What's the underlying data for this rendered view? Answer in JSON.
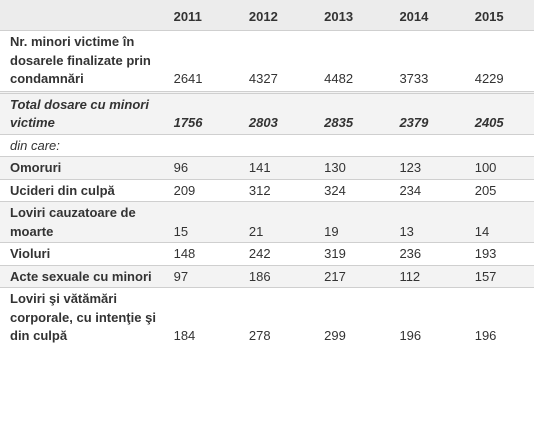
{
  "table": {
    "header": {
      "corner": "",
      "years": [
        "2011",
        "2012",
        "2013",
        "2014",
        "2015"
      ]
    },
    "rows": [
      {
        "label": "Nr. minori victime în dosarele finalizate prin condamnări",
        "values": [
          "2641",
          "4327",
          "4482",
          "3733",
          "4229"
        ]
      },
      {
        "label": "Total dosare cu minori victime",
        "values": [
          "1756",
          "2803",
          "2835",
          "2379",
          "2405"
        ]
      },
      {
        "label": "din care:"
      },
      {
        "label": "Omoruri",
        "values": [
          "96",
          "141",
          "130",
          "123",
          "100"
        ]
      },
      {
        "label": "Ucideri din culpă",
        "values": [
          "209",
          "312",
          "324",
          "234",
          "205"
        ]
      },
      {
        "label": "Loviri cauzatoare de moarte",
        "values": [
          "15",
          "21",
          "19",
          "13",
          "14"
        ]
      },
      {
        "label": "Violuri",
        "values": [
          "148",
          "242",
          "319",
          "236",
          "193"
        ]
      },
      {
        "label": "Acte sexuale cu minori",
        "values": [
          "97",
          "186",
          "217",
          "112",
          "157"
        ]
      },
      {
        "label": "Loviri şi vătămări corporale, cu intenţie şi din culpă",
        "values": [
          "184",
          "278",
          "299",
          "196",
          "196"
        ]
      }
    ]
  }
}
